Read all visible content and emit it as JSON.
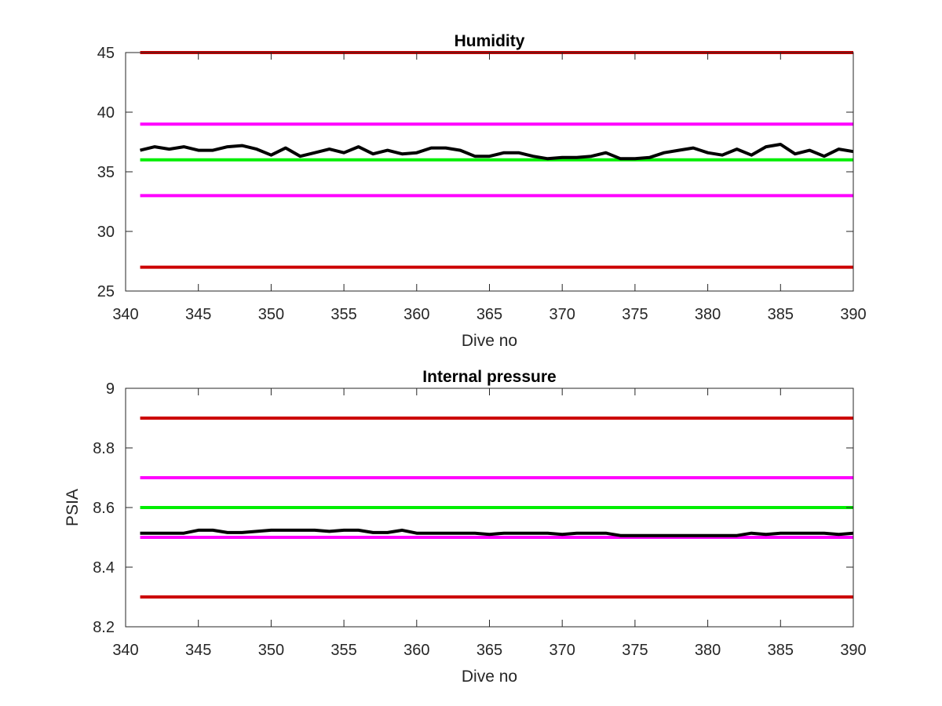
{
  "chart_data": [
    {
      "type": "line",
      "title": "Humidity",
      "xlabel": "Dive no",
      "ylabel": "",
      "xlim": [
        340,
        390
      ],
      "ylim": [
        25,
        45
      ],
      "xticks": [
        340,
        345,
        350,
        355,
        360,
        365,
        370,
        375,
        380,
        385,
        390
      ],
      "yticks": [
        25,
        30,
        35,
        40,
        45
      ],
      "reference_lines": [
        {
          "y": 45,
          "color": "#cc0000"
        },
        {
          "y": 39,
          "color": "#ff00ff"
        },
        {
          "y": 36,
          "color": "#00ee00"
        },
        {
          "y": 33,
          "color": "#ff00ff"
        },
        {
          "y": 27,
          "color": "#cc0000"
        }
      ],
      "series": [
        {
          "color": "#000000",
          "x": [
            341,
            342,
            343,
            344,
            345,
            346,
            347,
            348,
            349,
            350,
            351,
            352,
            353,
            354,
            355,
            356,
            357,
            358,
            359,
            360,
            361,
            362,
            363,
            364,
            365,
            366,
            367,
            368,
            369,
            370,
            371,
            372,
            373,
            374,
            375,
            376,
            377,
            378,
            379,
            380,
            381,
            382,
            383,
            384,
            385,
            386,
            387,
            388,
            389,
            390
          ],
          "y": [
            36.8,
            37.1,
            36.9,
            37.1,
            36.8,
            36.8,
            37.1,
            37.2,
            36.9,
            36.4,
            37.0,
            36.3,
            36.6,
            36.9,
            36.6,
            37.1,
            36.5,
            36.8,
            36.5,
            36.6,
            37.0,
            37.0,
            36.8,
            36.3,
            36.3,
            36.6,
            36.6,
            36.3,
            36.1,
            36.2,
            36.2,
            36.3,
            36.6,
            36.1,
            36.1,
            36.2,
            36.6,
            36.8,
            37.0,
            36.6,
            36.4,
            36.9,
            36.4,
            37.1,
            37.3,
            36.5,
            36.8,
            36.3,
            36.9,
            36.7
          ]
        }
      ]
    },
    {
      "type": "line",
      "title": "Internal pressure",
      "xlabel": "Dive no",
      "ylabel": "PSIA",
      "xlim": [
        340,
        390
      ],
      "ylim": [
        8.2,
        9
      ],
      "xticks": [
        340,
        345,
        350,
        355,
        360,
        365,
        370,
        375,
        380,
        385,
        390
      ],
      "yticks": [
        8.2,
        8.4,
        8.6,
        8.8,
        9
      ],
      "reference_lines": [
        {
          "y": 8.9,
          "color": "#cc0000"
        },
        {
          "y": 8.7,
          "color": "#ff00ff"
        },
        {
          "y": 8.6,
          "color": "#00ee00"
        },
        {
          "y": 8.5,
          "color": "#ff00ff"
        },
        {
          "y": 8.3,
          "color": "#cc0000"
        }
      ],
      "series": [
        {
          "color": "#000000",
          "x": [
            341,
            342,
            343,
            344,
            345,
            346,
            347,
            348,
            349,
            350,
            351,
            352,
            353,
            354,
            355,
            356,
            357,
            358,
            359,
            360,
            361,
            362,
            363,
            364,
            365,
            366,
            367,
            368,
            369,
            370,
            371,
            372,
            373,
            374,
            375,
            376,
            377,
            378,
            379,
            380,
            381,
            382,
            383,
            384,
            385,
            386,
            387,
            388,
            389,
            390
          ],
          "y": [
            8.514,
            8.514,
            8.514,
            8.514,
            8.524,
            8.524,
            8.516,
            8.516,
            8.52,
            8.524,
            8.524,
            8.524,
            8.524,
            8.52,
            8.524,
            8.524,
            8.516,
            8.516,
            8.524,
            8.514,
            8.514,
            8.514,
            8.514,
            8.514,
            8.51,
            8.514,
            8.514,
            8.514,
            8.514,
            8.51,
            8.514,
            8.514,
            8.514,
            8.506,
            8.506,
            8.506,
            8.506,
            8.506,
            8.506,
            8.506,
            8.506,
            8.506,
            8.514,
            8.51,
            8.514,
            8.514,
            8.514,
            8.514,
            8.51,
            8.514
          ]
        }
      ]
    }
  ]
}
